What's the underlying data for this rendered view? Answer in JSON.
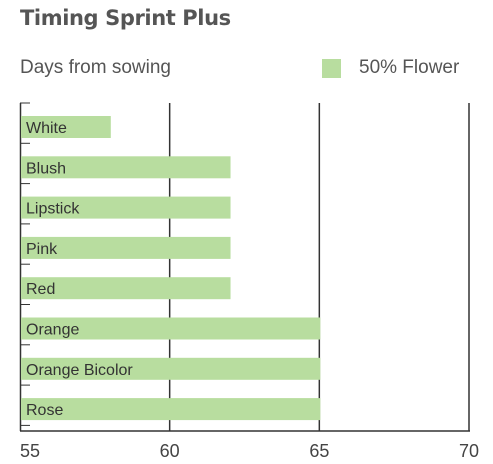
{
  "chart_data": {
    "type": "bar",
    "orientation": "horizontal",
    "title": "Timing Sprint Plus",
    "subtitle": "Days from sowing",
    "categories": [
      "White",
      "Blush",
      "Lipstick",
      "Pink",
      "Red",
      "Orange",
      "Orange Bicolor",
      "Rose"
    ],
    "series": [
      {
        "name": "50% Flower",
        "values": [
          58,
          62,
          62,
          62,
          62,
          65,
          65,
          65
        ],
        "color": "#b8dd9f"
      }
    ],
    "xlim": [
      55,
      70
    ],
    "xticks": [
      55,
      60,
      65,
      70
    ],
    "grid": true,
    "legend_position": "top-right"
  }
}
